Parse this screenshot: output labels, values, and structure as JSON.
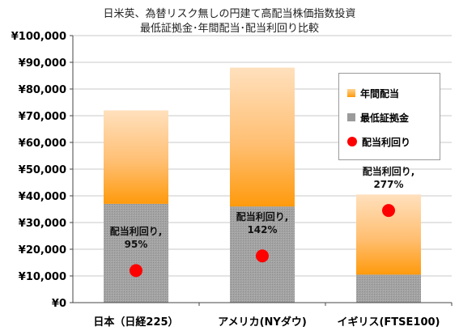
{
  "chart_data": {
    "type": "bar",
    "stacked": true,
    "title": "日米英、為替リスク無しの円建て高配当株価指数投資",
    "subtitle": "最低証拠金･年間配当･配当利回り比較",
    "categories": [
      "日本（日経225）",
      "アメリカ(NYダウ)",
      "イギリス(FTSE100)"
    ],
    "series": [
      {
        "name": "最低証拠金",
        "values": [
          37000,
          36000,
          10500
        ],
        "color": "#9b9b9b"
      },
      {
        "name": "年間配当",
        "values": [
          35000,
          52000,
          30000
        ],
        "color": "#ffa82a"
      },
      {
        "name": "配当利回り",
        "values": [
          12000,
          17500,
          34500
        ],
        "color": "#ff0000",
        "kind": "marker"
      }
    ],
    "yield_labels": [
      {
        "line1": "配当利回り,",
        "line2": "95%"
      },
      {
        "line1": "配当利回り,",
        "line2": "142%"
      },
      {
        "line1": "配当利回り,",
        "line2": "277%"
      }
    ],
    "ylim": [
      0,
      100000
    ],
    "yticks": [
      0,
      10000,
      20000,
      30000,
      40000,
      50000,
      60000,
      70000,
      80000,
      90000,
      100000
    ],
    "ytick_labels": [
      "¥0",
      "¥10,000",
      "¥20,000",
      "¥30,000",
      "¥40,000",
      "¥50,000",
      "¥60,000",
      "¥70,000",
      "¥80,000",
      "¥90,000",
      "¥100,000"
    ],
    "grid": true,
    "legend_position": "right",
    "legend": [
      "年間配当",
      "最低証拠金",
      "配当利回り"
    ]
  }
}
